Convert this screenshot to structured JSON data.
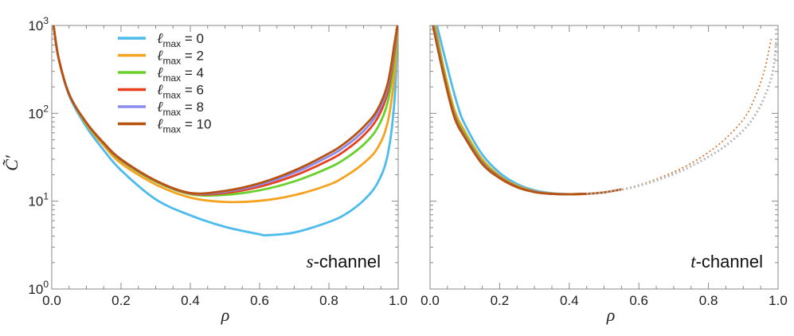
{
  "chart_data": {
    "type": "line",
    "ylabel": "C̃′",
    "y_scale": "log",
    "ylim": [
      1,
      1000
    ],
    "y_ticks": [
      {
        "value": 1,
        "base": "10",
        "exp": "0"
      },
      {
        "value": 10,
        "base": "10",
        "exp": "1"
      },
      {
        "value": 100,
        "base": "10",
        "exp": "2"
      },
      {
        "value": 1000,
        "base": "10",
        "exp": "3"
      }
    ],
    "xlabel": "ρ",
    "xlim": [
      0,
      1
    ],
    "x_ticks": [
      "0.0",
      "0.2",
      "0.4",
      "0.6",
      "0.8",
      "1.0"
    ],
    "legend": {
      "placement": "top-left of left panel",
      "symbol": "ℓ",
      "subscript": "max",
      "equals": " = ",
      "entries": [
        {
          "value": "0",
          "color": "#4dbbec"
        },
        {
          "value": "2",
          "color": "#f5a31f"
        },
        {
          "value": "4",
          "color": "#6ad12c"
        },
        {
          "value": "6",
          "color": "#e8401f"
        },
        {
          "value": "8",
          "color": "#8c8cf0"
        },
        {
          "value": "10",
          "color": "#b8520f"
        }
      ]
    },
    "panels": [
      {
        "name": "s-channel",
        "label_italic": "s",
        "label_rest": "-channel",
        "series": [
          {
            "name": "ℓmax = 0",
            "color": "#4dbbec",
            "x": [
              0.005,
              0.02,
              0.05,
              0.1,
              0.15,
              0.2,
              0.3,
              0.4,
              0.5,
              0.6,
              0.62,
              0.7,
              0.8,
              0.85,
              0.9,
              0.94,
              0.97,
              0.99,
              0.998
            ],
            "y": [
              1000,
              420,
              160,
              70,
              38,
              22.5,
              10.5,
              6.9,
              5.1,
              4.2,
              4.1,
              4.4,
              5.8,
              7.2,
              10.2,
              16,
              34,
              150,
              1000
            ]
          },
          {
            "name": "ℓmax = 2",
            "color": "#f5a31f",
            "x": [
              0.005,
              0.02,
              0.05,
              0.1,
              0.15,
              0.2,
              0.3,
              0.4,
              0.5,
              0.6,
              0.7,
              0.8,
              0.85,
              0.9,
              0.94,
              0.97,
              0.99,
              0.998
            ],
            "y": [
              1000,
              420,
              165,
              75,
              43,
              27,
              15.5,
              11,
              9.8,
              10.1,
              11.7,
              15.4,
              19.5,
              27,
              40,
              80,
              290,
              1000
            ]
          },
          {
            "name": "ℓmax = 4",
            "color": "#6ad12c",
            "x": [
              0.005,
              0.02,
              0.05,
              0.1,
              0.15,
              0.2,
              0.3,
              0.4,
              0.5,
              0.6,
              0.7,
              0.8,
              0.85,
              0.9,
              0.94,
              0.97,
              0.99,
              0.998
            ],
            "y": [
              1000,
              420,
              165,
              77,
              45,
              29,
              16.7,
              12,
              11.8,
              13.3,
              16.8,
              24,
              31,
              44,
              68,
              135,
              430,
              1000
            ]
          },
          {
            "name": "ℓmax = 6",
            "color": "#e8401f",
            "x": [
              0.005,
              0.02,
              0.05,
              0.1,
              0.15,
              0.2,
              0.3,
              0.4,
              0.5,
              0.6,
              0.7,
              0.8,
              0.85,
              0.9,
              0.94,
              0.97,
              0.99,
              0.998
            ],
            "y": [
              1000,
              420,
              165,
              78,
              45.5,
              29.5,
              17,
              12.2,
              12.4,
              14.6,
              19.5,
              29.2,
              38.5,
              56,
              88,
              175,
              530,
              1000
            ]
          },
          {
            "name": "ℓmax = 8",
            "color": "#8c8cf0",
            "x": [
              0.005,
              0.02,
              0.05,
              0.1,
              0.15,
              0.2,
              0.3,
              0.4,
              0.5,
              0.6,
              0.7,
              0.8,
              0.85,
              0.9,
              0.94,
              0.97,
              0.99,
              0.998
            ],
            "y": [
              1000,
              420,
              165,
              78,
              45.8,
              29.8,
              17.1,
              12.3,
              12.8,
              15.4,
              21,
              32.4,
              43,
              63,
              100,
              200,
              600,
              1000
            ]
          },
          {
            "name": "ℓmax = 10",
            "color": "#b8520f",
            "x": [
              0.005,
              0.02,
              0.05,
              0.1,
              0.15,
              0.2,
              0.3,
              0.4,
              0.5,
              0.6,
              0.7,
              0.8,
              0.85,
              0.9,
              0.94,
              0.97,
              0.99,
              0.998
            ],
            "y": [
              1000,
              420,
              165,
              78,
              46,
              30,
              17.2,
              12.4,
              13.1,
              16,
              22.3,
              35,
              47,
              70,
              110,
              220,
              650,
              1000
            ]
          }
        ]
      },
      {
        "name": "t-channel",
        "label_italic": "t",
        "label_rest": "-channel",
        "series": [
          {
            "name": "ℓmax = 0",
            "color": "#4dbbec",
            "x": [
              0.02,
              0.05,
              0.08,
              0.1,
              0.15,
              0.2,
              0.25,
              0.3,
              0.35,
              0.4,
              0.45
            ],
            "y": [
              1000,
              330,
              120,
              75,
              34,
              21,
              15.7,
              13.3,
              12.3,
              12.0,
              12.1
            ]
          },
          {
            "name": "ℓmax = 2",
            "color": "#f5a31f",
            "x": [
              0.015,
              0.04,
              0.07,
              0.1,
              0.15,
              0.2,
              0.25,
              0.3,
              0.35,
              0.4,
              0.45
            ],
            "y": [
              1000,
              320,
              110,
              62,
              30,
              19.5,
              15,
              13,
              12.2,
              12.0,
              12.1
            ]
          },
          {
            "name": "ℓmax = 4",
            "color": "#6ad12c",
            "x": [
              0.012,
              0.04,
              0.07,
              0.1,
              0.15,
              0.2,
              0.25,
              0.3,
              0.35,
              0.4,
              0.45
            ],
            "y": [
              1000,
              290,
              100,
              58,
              28.5,
              19,
              14.7,
              12.9,
              12.1,
              12.0,
              12.1
            ]
          },
          {
            "name": "ℓmax = 6",
            "color": "#e8401f",
            "x": [
              0.01,
              0.04,
              0.07,
              0.1,
              0.15,
              0.2,
              0.25,
              0.3,
              0.35,
              0.4,
              0.45
            ],
            "y": [
              1000,
              270,
              95,
              55,
              27.5,
              18.7,
              14.6,
              12.8,
              12.1,
              12.0,
              12.1
            ]
          },
          {
            "name": "ℓmax = 8",
            "color": "#8c8cf0",
            "x": [
              0.01,
              0.04,
              0.07,
              0.1,
              0.15,
              0.2,
              0.25,
              0.3,
              0.35,
              0.4,
              0.45
            ],
            "y": [
              1000,
              265,
              92,
              54,
              27,
              18.5,
              14.5,
              12.8,
              12.1,
              12.0,
              12.1
            ]
          },
          {
            "name": "ℓmax = 10",
            "color": "#b8520f",
            "x": [
              0.008,
              0.04,
              0.07,
              0.1,
              0.15,
              0.2,
              0.25,
              0.3,
              0.35,
              0.4,
              0.45,
              0.5,
              0.55
            ],
            "y": [
              1000,
              260,
              90,
              53,
              26.5,
              18.3,
              14.4,
              12.7,
              12.1,
              12.0,
              12.1,
              12.6,
              13.6
            ]
          },
          {
            "name": "dotted (orange)",
            "color": "#d96a1e",
            "dashed": true,
            "x": [
              0.45,
              0.5,
              0.55,
              0.6,
              0.65,
              0.7,
              0.75,
              0.8,
              0.85,
              0.9,
              0.93,
              0.96,
              0.98
            ],
            "y": [
              12.1,
              12.6,
              13.6,
              15.3,
              17.8,
              21.5,
              27,
              36,
              52,
              85,
              140,
              300,
              700
            ]
          },
          {
            "name": "dotted (gray)",
            "color": "#b8b8b8",
            "dashed": true,
            "x": [
              0.45,
              0.5,
              0.55,
              0.6,
              0.65,
              0.7,
              0.75,
              0.8,
              0.85,
              0.9,
              0.93,
              0.96,
              0.985,
              0.995
            ],
            "y": [
              12.1,
              12.6,
              13.5,
              15,
              17.2,
              20.3,
              25,
              32,
              43,
              64,
              90,
              150,
              300,
              700
            ]
          }
        ]
      }
    ]
  }
}
